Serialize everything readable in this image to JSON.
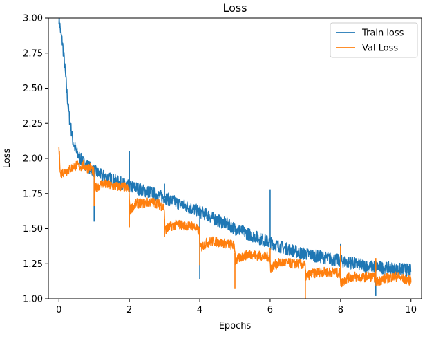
{
  "chart_data": {
    "type": "line",
    "title": "Loss",
    "xlabel": "Epochs",
    "ylabel": "Loss",
    "xlim": [
      -0.3,
      10.3
    ],
    "ylim": [
      1.0,
      3.0
    ],
    "xticks": [
      0,
      2,
      4,
      6,
      8,
      10
    ],
    "xtick_labels": [
      "0",
      "2",
      "4",
      "6",
      "8",
      "10"
    ],
    "yticks": [
      1.0,
      1.25,
      1.5,
      1.75,
      2.0,
      2.25,
      2.5,
      2.75,
      3.0
    ],
    "ytick_labels": [
      "1.00",
      "1.25",
      "1.50",
      "1.75",
      "2.00",
      "2.25",
      "2.50",
      "2.75",
      "3.00"
    ],
    "grid": false,
    "legend_position": "top-right",
    "series": [
      {
        "name": "Train loss",
        "color": "#1f77b4",
        "x": [
          0.0,
          0.05,
          0.1,
          0.15,
          0.2,
          0.25,
          0.3,
          0.35,
          0.4,
          0.45,
          0.5,
          0.6,
          0.7,
          0.8,
          0.9,
          1.0,
          1.2,
          1.4,
          1.6,
          1.8,
          2.0,
          2.2,
          2.4,
          2.6,
          2.8,
          3.0,
          3.2,
          3.4,
          3.6,
          3.8,
          4.0,
          4.2,
          4.4,
          4.6,
          4.8,
          5.0,
          5.2,
          5.4,
          5.6,
          5.8,
          6.0,
          6.2,
          6.4,
          6.6,
          6.8,
          7.0,
          7.2,
          7.4,
          7.6,
          7.8,
          8.0,
          8.2,
          8.4,
          8.6,
          8.8,
          9.0,
          9.2,
          9.4,
          9.6,
          9.8,
          10.0
        ],
        "y": [
          3.0,
          2.9,
          2.82,
          2.7,
          2.55,
          2.4,
          2.28,
          2.2,
          2.12,
          2.08,
          2.04,
          2.0,
          1.97,
          1.95,
          1.93,
          1.91,
          1.88,
          1.86,
          1.84,
          1.82,
          1.8,
          1.79,
          1.77,
          1.76,
          1.74,
          1.72,
          1.7,
          1.68,
          1.66,
          1.64,
          1.62,
          1.6,
          1.57,
          1.55,
          1.53,
          1.5,
          1.48,
          1.46,
          1.44,
          1.42,
          1.4,
          1.38,
          1.36,
          1.35,
          1.33,
          1.32,
          1.31,
          1.3,
          1.29,
          1.28,
          1.27,
          1.26,
          1.25,
          1.24,
          1.23,
          1.23,
          1.22,
          1.22,
          1.21,
          1.21,
          1.2
        ],
        "spikes": [
          [
            1.0,
            1.55
          ],
          [
            2.0,
            2.05
          ],
          [
            3.0,
            1.82
          ],
          [
            4.0,
            1.14
          ],
          [
            6.0,
            1.78
          ],
          [
            8.0,
            1.39
          ],
          [
            9.0,
            1.02
          ]
        ]
      },
      {
        "name": "Val Loss",
        "color": "#ff7f0e",
        "x": [
          0.0,
          0.05,
          0.1,
          0.2,
          0.3,
          0.4,
          0.5,
          0.6,
          0.7,
          0.8,
          0.9,
          0.99,
          1.01,
          1.2,
          1.4,
          1.6,
          1.8,
          1.99,
          2.01,
          2.2,
          2.4,
          2.6,
          2.8,
          2.99,
          3.01,
          3.2,
          3.4,
          3.6,
          3.8,
          3.99,
          4.01,
          4.2,
          4.4,
          4.6,
          4.8,
          4.99,
          5.01,
          5.2,
          5.4,
          5.6,
          5.8,
          5.99,
          6.01,
          6.2,
          6.4,
          6.6,
          6.8,
          6.99,
          7.01,
          7.2,
          7.4,
          7.6,
          7.8,
          7.99,
          8.01,
          8.2,
          8.4,
          8.6,
          8.8,
          8.99,
          9.01,
          9.2,
          9.4,
          9.6,
          9.8,
          10.0
        ],
        "y": [
          2.07,
          1.88,
          1.9,
          1.91,
          1.92,
          1.94,
          1.95,
          1.94,
          1.95,
          1.93,
          1.94,
          1.9,
          1.78,
          1.82,
          1.81,
          1.8,
          1.8,
          1.78,
          1.63,
          1.68,
          1.68,
          1.69,
          1.68,
          1.65,
          1.49,
          1.52,
          1.53,
          1.52,
          1.52,
          1.48,
          1.36,
          1.4,
          1.41,
          1.4,
          1.39,
          1.38,
          1.27,
          1.3,
          1.32,
          1.31,
          1.3,
          1.3,
          1.22,
          1.25,
          1.26,
          1.25,
          1.25,
          1.24,
          1.16,
          1.18,
          1.19,
          1.19,
          1.19,
          1.18,
          1.11,
          1.15,
          1.16,
          1.15,
          1.16,
          1.15,
          1.12,
          1.14,
          1.15,
          1.16,
          1.14,
          1.13
        ],
        "spikes": [
          [
            1.0,
            1.66
          ],
          [
            2.0,
            1.51
          ],
          [
            3.0,
            1.44
          ],
          [
            4.0,
            1.24
          ],
          [
            5.0,
            1.07
          ],
          [
            6.0,
            1.36
          ],
          [
            7.0,
            1.0
          ],
          [
            8.0,
            1.38
          ],
          [
            9.0,
            1.29
          ]
        ]
      }
    ]
  }
}
